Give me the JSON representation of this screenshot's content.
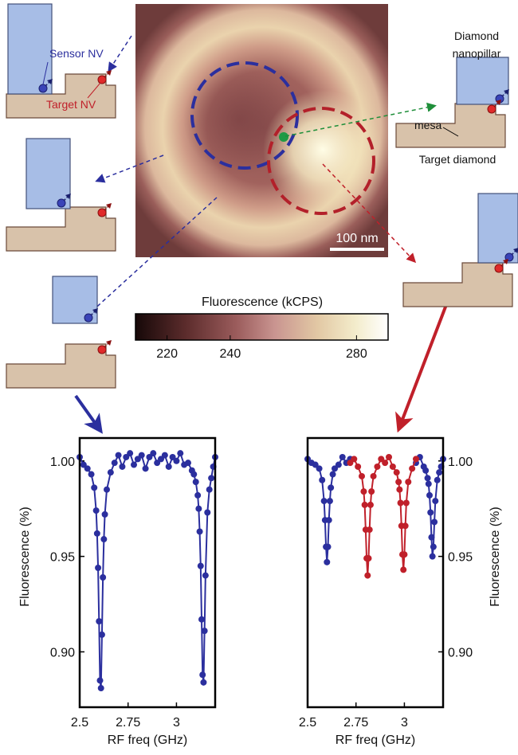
{
  "heatmap": {
    "scale_bar": "100 nm",
    "colorbar": {
      "label": "Fluorescence (kCPS)",
      "lim": [
        210,
        290
      ],
      "ticks": [
        220,
        240,
        280
      ]
    }
  },
  "annotations": {
    "sensor_nv": "Sensor NV",
    "target_nv": "Target NV",
    "nanopillar": [
      "Diamond",
      "nanopillar"
    ],
    "mesa": "mesa",
    "target_diamond": "Target diamond"
  },
  "chart_data": [
    {
      "type": "line",
      "xlabel": "RF freq (GHz)",
      "ylabel": "Fluorescence (%)",
      "yaxis_side": "left",
      "xlim": [
        2.5,
        3.2
      ],
      "ylim": [
        0.871,
        1.012
      ],
      "xticks": [
        2.5,
        2.75,
        3
      ],
      "yticks": [
        {
          "value": 0.9,
          "label": "0.90"
        },
        0.95,
        {
          "value": 1,
          "label": "1.00"
        }
      ],
      "series": [
        {
          "color": "#2b2f9e",
          "x": [
            2.5,
            2.52,
            2.54,
            2.56,
            2.575,
            2.585,
            2.59,
            2.595,
            2.6,
            2.605,
            2.61,
            2.615,
            2.62,
            2.625,
            2.63,
            2.64,
            2.66,
            2.68,
            2.7,
            2.72,
            2.74,
            2.76,
            2.78,
            2.8,
            2.82,
            2.84,
            2.86,
            2.88,
            2.9,
            2.92,
            2.94,
            2.96,
            2.98,
            3.0,
            3.02,
            3.04,
            3.06,
            3.08,
            3.09,
            3.1,
            3.11,
            3.115,
            3.12,
            3.125,
            3.13,
            3.135,
            3.14,
            3.145,
            3.15,
            3.16,
            3.17,
            3.18,
            3.19,
            3.2
          ],
          "values": [
            1.002,
            0.998,
            0.996,
            0.993,
            0.986,
            0.974,
            0.962,
            0.944,
            0.916,
            0.885,
            0.881,
            0.909,
            0.939,
            0.959,
            0.972,
            0.985,
            0.994,
            0.999,
            1.003,
            0.997,
            1.002,
            1.004,
            0.998,
            1.001,
            1.003,
            0.996,
            1.002,
            1.004,
            0.999,
            1.001,
            1.003,
            0.997,
            1.002,
            1.0,
            1.004,
            0.998,
            0.999,
            0.995,
            0.993,
            0.989,
            0.982,
            0.975,
            0.963,
            0.945,
            0.917,
            0.888,
            0.884,
            0.911,
            0.94,
            0.973,
            0.985,
            0.991,
            0.997,
            1.002
          ]
        }
      ]
    },
    {
      "type": "line",
      "xlabel": "RF freq (GHz)",
      "ylabel": "Fluorescence (%)",
      "yaxis_side": "right",
      "xlim": [
        2.5,
        3.2
      ],
      "ylim": [
        0.871,
        1.012
      ],
      "xticks": [
        2.5,
        2.75,
        3
      ],
      "yticks": [
        {
          "value": 0.9,
          "label": "0.90"
        },
        0.95,
        {
          "value": 1,
          "label": "1.00"
        }
      ],
      "series": [
        {
          "color": "#2b2f9e",
          "x": [
            2.5,
            2.52,
            2.54,
            2.56,
            2.575,
            2.585,
            2.59,
            2.595,
            2.6,
            2.605,
            2.61,
            2.615,
            2.62,
            2.63,
            2.64,
            2.66,
            2.68,
            2.7,
            2.72,
            2.9,
            3.06,
            3.08,
            3.1,
            3.11,
            3.12,
            3.125,
            3.13,
            3.135,
            3.14,
            3.145,
            3.15,
            3.155,
            3.16,
            3.17,
            3.18,
            3.19,
            3.2
          ],
          "values": [
            1.001,
            0.999,
            0.998,
            0.996,
            0.99,
            0.979,
            0.969,
            0.955,
            0.947,
            0.955,
            0.969,
            0.979,
            0.986,
            0.993,
            0.996,
            0.998,
            1.002,
            0.999,
            1.001,
            null,
            0.999,
            1.002,
            0.997,
            0.995,
            0.991,
            0.988,
            0.982,
            0.973,
            0.96,
            0.95,
            0.955,
            0.968,
            0.979,
            0.99,
            0.994,
            0.997,
            1.001
          ]
        },
        {
          "color": "#c0202a",
          "x": [
            2.72,
            2.74,
            2.76,
            2.78,
            2.79,
            2.795,
            2.8,
            2.805,
            2.81,
            2.815,
            2.82,
            2.825,
            2.83,
            2.84,
            2.86,
            2.88,
            2.9,
            2.92,
            2.94,
            2.96,
            2.97,
            2.975,
            2.98,
            2.985,
            2.99,
            2.995,
            3.0,
            3.005,
            3.01,
            3.02,
            3.04,
            3.06
          ],
          "values": [
            0.999,
            1.001,
            0.997,
            0.992,
            0.984,
            0.977,
            0.964,
            0.949,
            0.94,
            0.949,
            0.964,
            0.977,
            0.984,
            0.992,
            0.997,
            1.001,
            0.999,
            1.002,
            0.997,
            0.994,
            0.989,
            0.985,
            0.978,
            0.966,
            0.951,
            0.943,
            0.951,
            0.966,
            0.978,
            0.989,
            0.996,
            1.001
          ]
        }
      ]
    }
  ]
}
